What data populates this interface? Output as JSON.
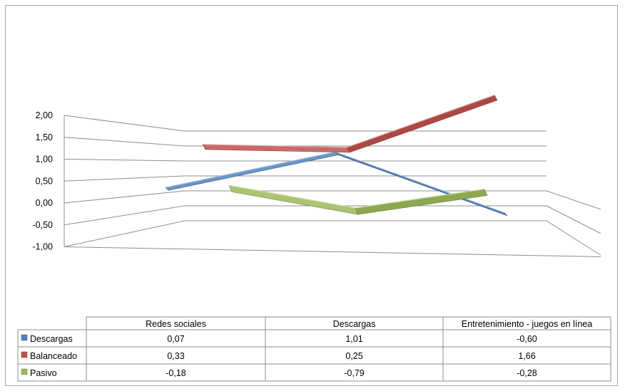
{
  "chart_data": {
    "type": "line",
    "style": "3d-line-with-data-table",
    "categories": [
      "Redes sociales",
      "Descargas",
      "Entretenimiento -  juegos en línea"
    ],
    "series": [
      {
        "name": "Descargas",
        "values": [
          0.07,
          1.01,
          -0.6
        ],
        "value_labels": [
          "0,07",
          "1,01",
          "-0,60"
        ],
        "color": "#4f81bd"
      },
      {
        "name": "Balanceado",
        "values": [
          0.33,
          0.25,
          1.66
        ],
        "value_labels": [
          "0,33",
          "0,25",
          "1,66"
        ],
        "color": "#c0504d"
      },
      {
        "name": "Pasivo",
        "values": [
          -0.18,
          -0.79,
          -0.28
        ],
        "value_labels": [
          "-0,18",
          "-0,79",
          "-0,28"
        ],
        "color": "#9bbb59"
      }
    ],
    "y_ticks": [
      "2,00",
      "1,50",
      "1,00",
      "0,50",
      "0,00",
      "-0,50",
      "-1,00"
    ],
    "ylim": [
      -1.0,
      2.0
    ],
    "grid": true,
    "legend": "data-table-left"
  }
}
